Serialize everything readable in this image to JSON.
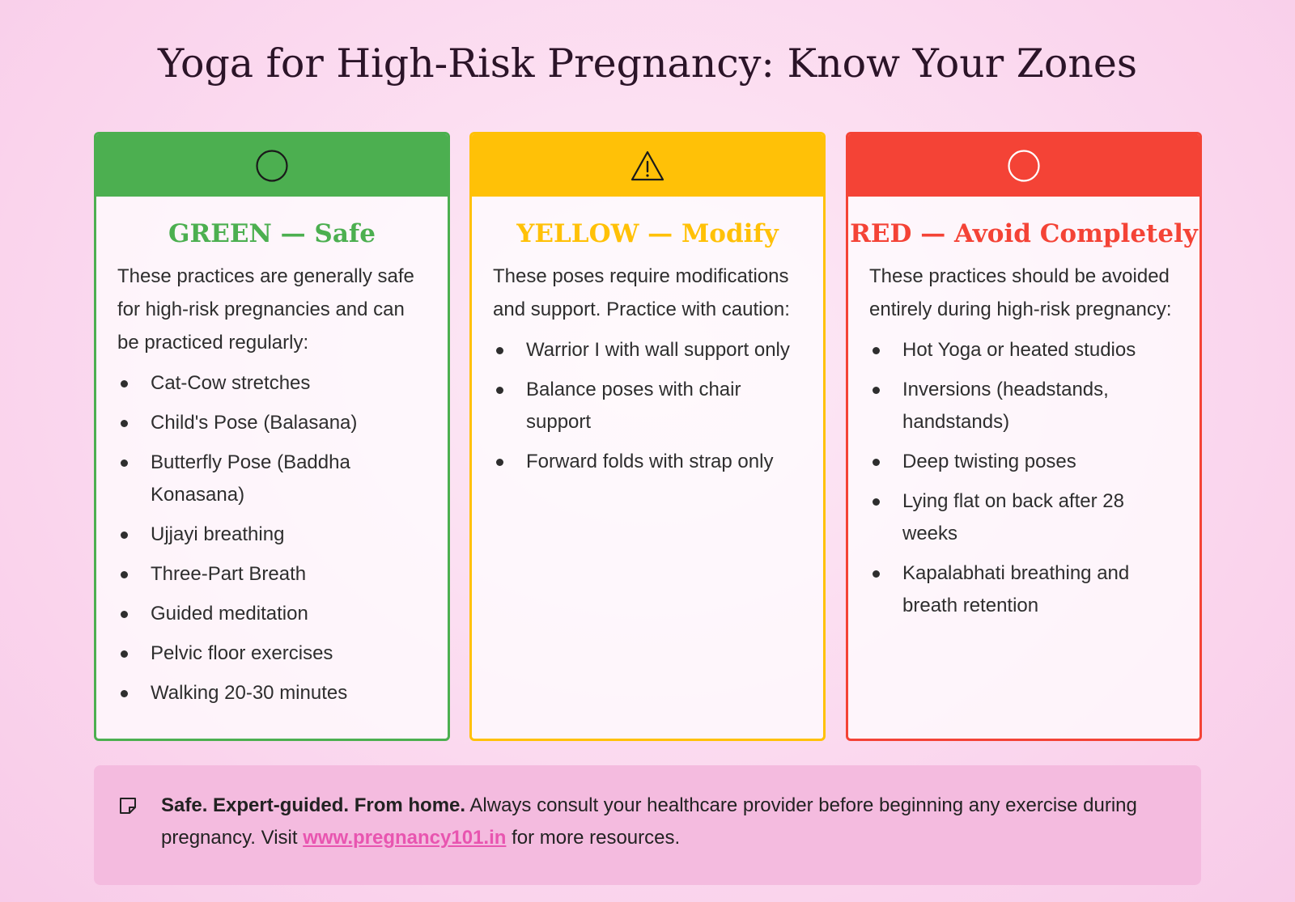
{
  "title": "Yoga for High-Risk Pregnancy: Know Your Zones",
  "zones": [
    {
      "title": "GREEN — Safe",
      "icon": "circle-outline-icon",
      "color": "#4caf50",
      "description": "These practices are generally safe for high-risk pregnancies and can be practiced regularly:",
      "items": [
        "Cat-Cow stretches",
        "Child's Pose (Balasana)",
        "Butterfly Pose (Baddha Konasana)",
        "Ujjayi breathing",
        "Three-Part Breath",
        "Guided meditation",
        "Pelvic floor exercises",
        "Walking 20-30 minutes"
      ]
    },
    {
      "title": "YELLOW — Modify",
      "icon": "warning-triangle-icon",
      "color": "#ffc107",
      "description": "These poses require modifications and support. Practice with caution:",
      "items": [
        "Warrior I with wall support only",
        "Balance poses with chair support",
        "Forward folds with strap only"
      ]
    },
    {
      "title": "RED — Avoid Completely",
      "icon": "circle-outline-icon",
      "color": "#f44336",
      "description": "These practices should be avoided entirely during high-risk pregnancy:",
      "items": [
        "Hot Yoga or heated studios",
        "Inversions (headstands, handstands)",
        "Deep twisting poses",
        "Lying flat on back after 28 weeks",
        "Kapalabhati breathing and breath retention"
      ]
    }
  ],
  "footer": {
    "icon": "note-icon",
    "bold": "Safe. Expert-guided. From home.",
    "text_before_link": " Always consult your healthcare provider before beginning any exercise during pregnancy. Visit ",
    "link": "www.pregnancy101.in",
    "text_after_link": " for more resources.",
    "link_color": "#e855b0"
  }
}
